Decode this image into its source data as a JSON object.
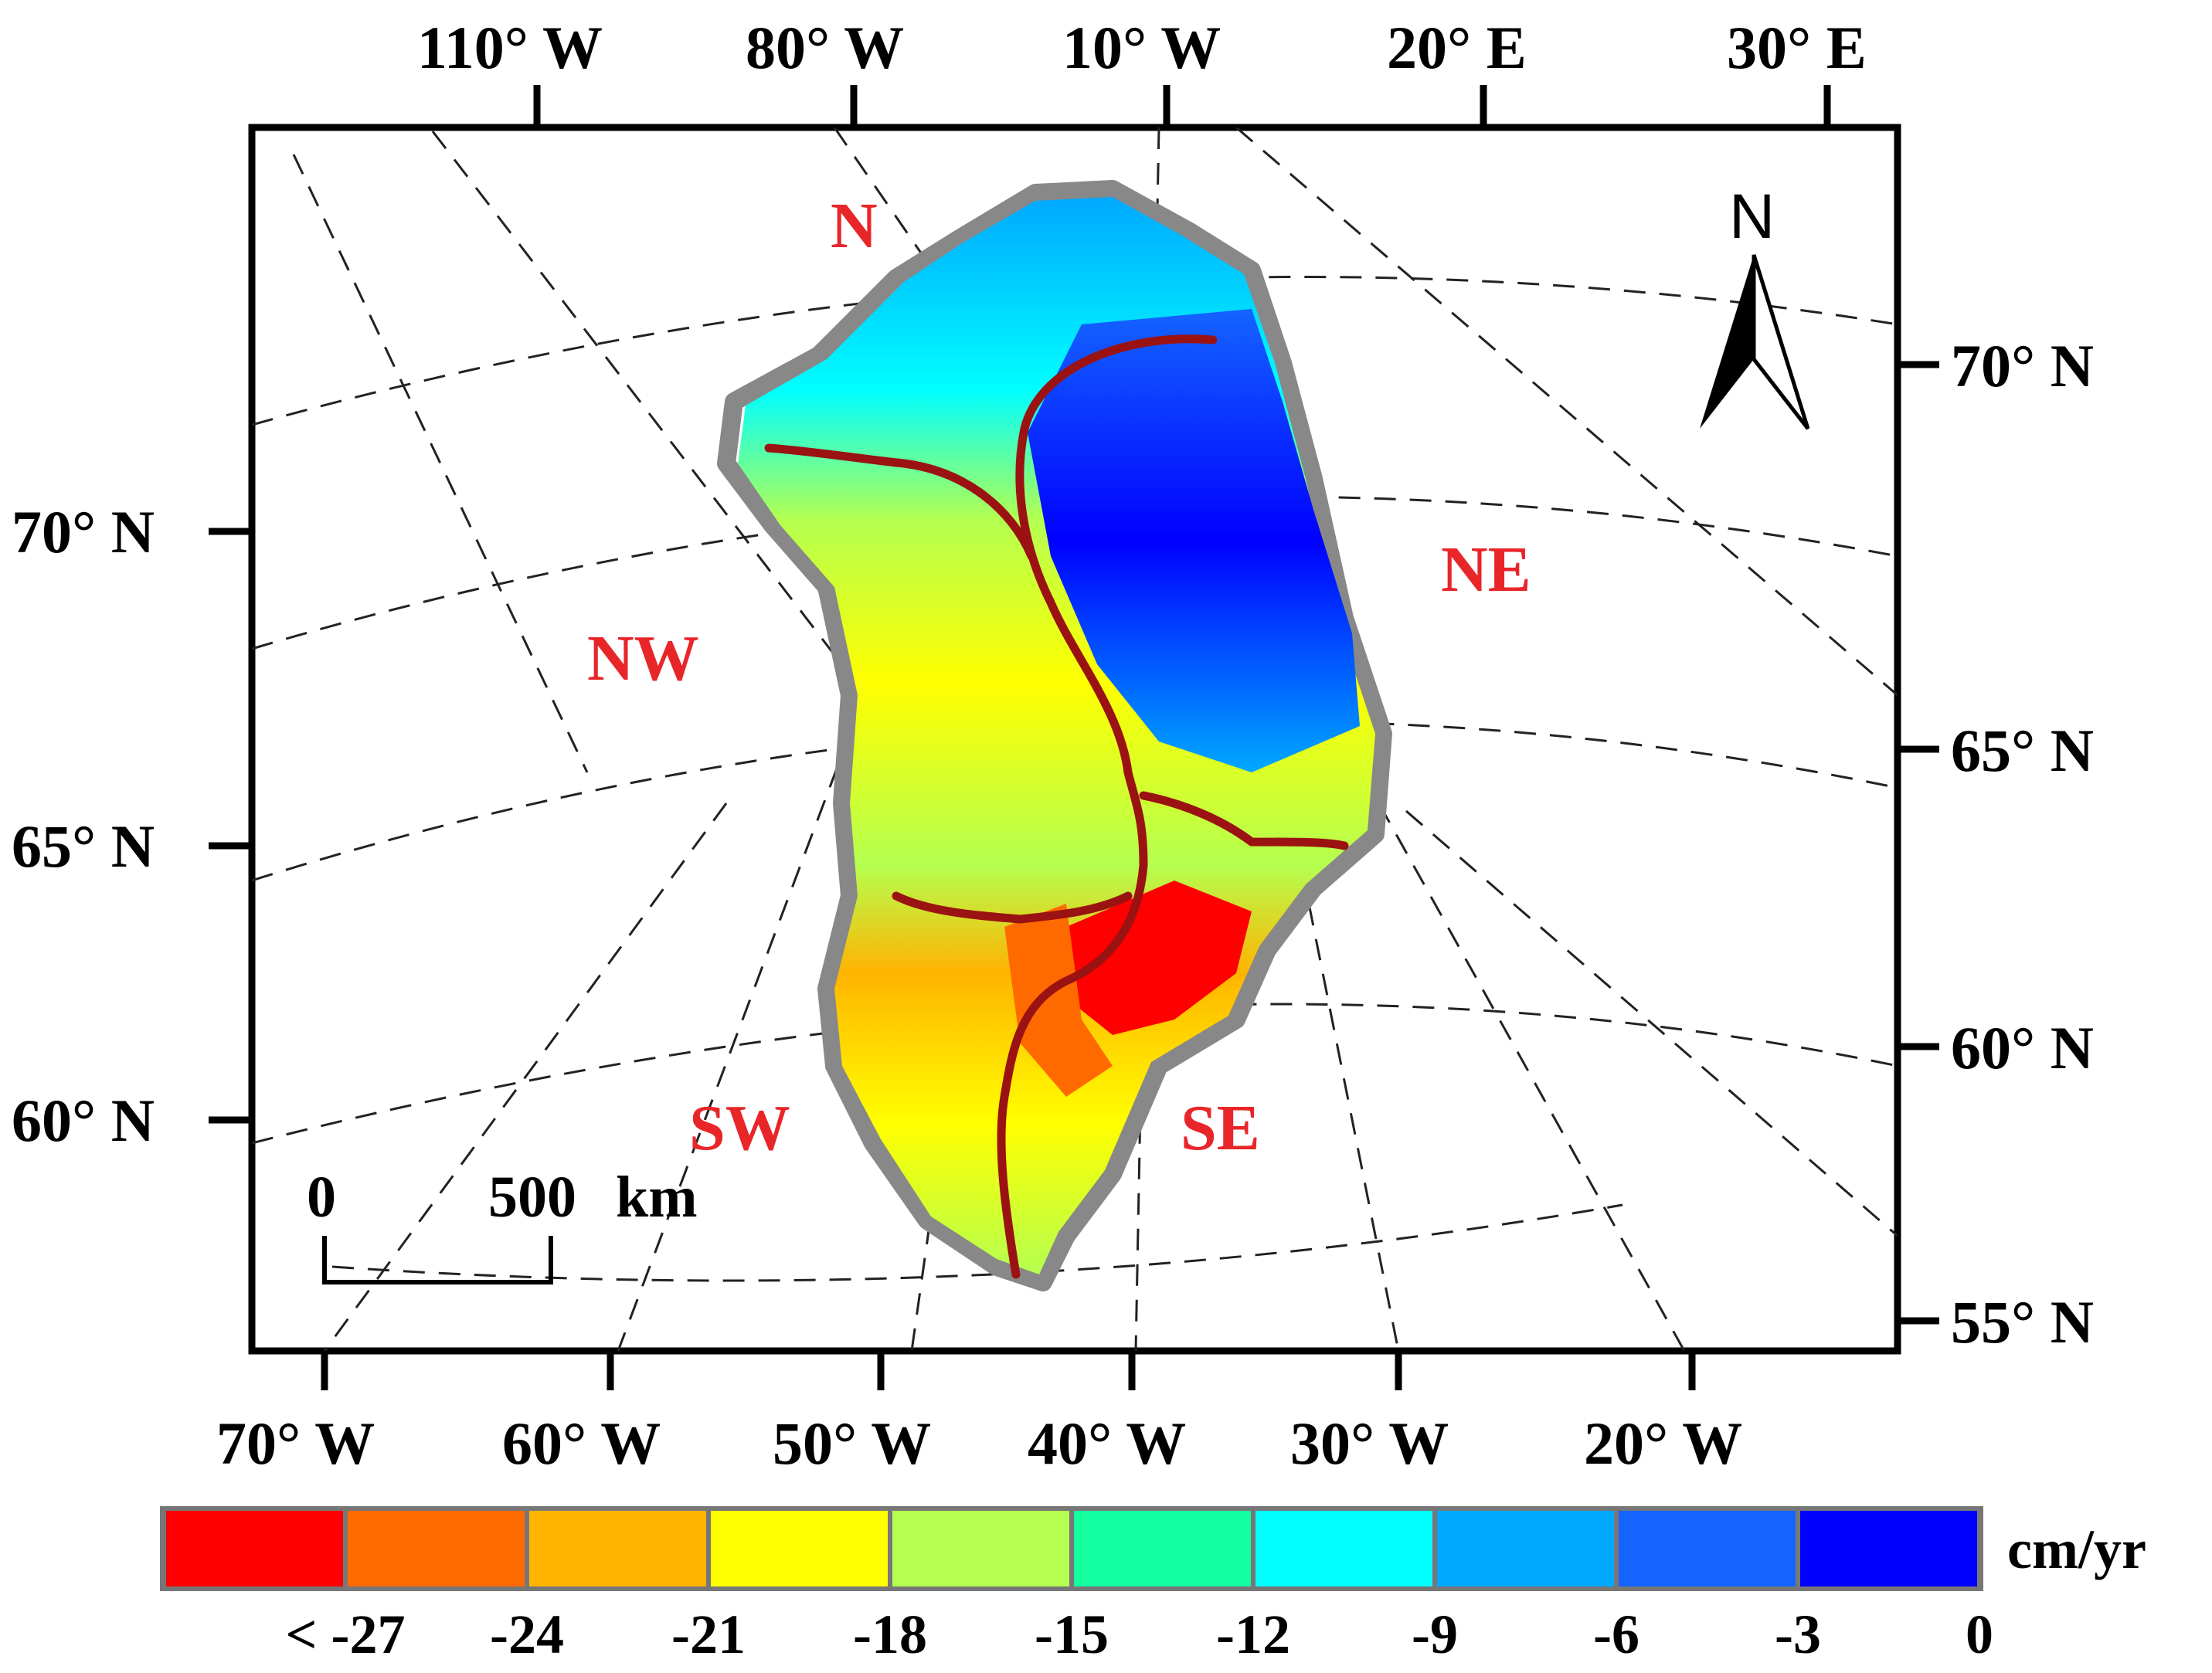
{
  "top_axis": [
    "110° W",
    "80° W",
    "10° W",
    "20° E",
    "30° E"
  ],
  "bottom_axis": [
    "70° W",
    "60° W",
    "50° W",
    "40° W",
    "30° W",
    "20° W"
  ],
  "left_axis": [
    "70° N",
    "65° N",
    "60° N"
  ],
  "right_axis": [
    "70° N",
    "65° N",
    "60° N",
    "55° N"
  ],
  "regions": {
    "n": "N",
    "ne": "NE",
    "nw": "NW",
    "sw": "SW",
    "se": "SE"
  },
  "north_arrow_label": "N",
  "scale_bar": {
    "start": "0",
    "end": "500",
    "unit": "km"
  },
  "legend": {
    "unit": "cm/yr",
    "colors": [
      "#ff0000",
      "#ff6a00",
      "#ffb400",
      "#ffff00",
      "#b4ff50",
      "#14ffa0",
      "#00ffff",
      "#00a8ff",
      "#1464ff",
      "#0000ff"
    ],
    "labels": [
      "< -27",
      "-24",
      "-21",
      "-18",
      "-15",
      "-12",
      "-9",
      "-6",
      "-3",
      "0"
    ]
  }
}
